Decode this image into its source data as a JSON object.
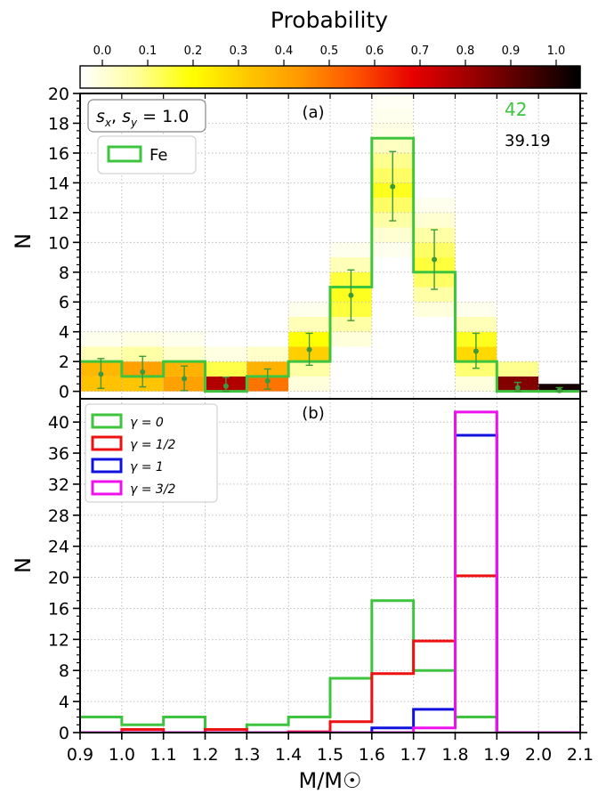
{
  "colorbar": {
    "title": "Probability",
    "ticks": [
      "0.0",
      "0.1",
      "0.2",
      "0.3",
      "0.4",
      "0.5",
      "0.6",
      "0.7",
      "0.8",
      "0.9",
      "1.0"
    ],
    "tick_values": [
      0,
      0.1,
      0.2,
      0.3,
      0.4,
      0.5,
      0.6,
      0.7,
      0.8,
      0.9,
      1.0
    ],
    "stops": [
      "#ffffff",
      "#ffff9c",
      "#ffff00",
      "#ffc800",
      "#ff9600",
      "#ff5000",
      "#e60000",
      "#a00000",
      "#500000",
      "#000000"
    ]
  },
  "chart_data": [
    {
      "panel_label": "(a)",
      "type": "histogram-heatmap",
      "xlim": [
        0.9,
        2.1
      ],
      "ylim": [
        -0.5,
        20
      ],
      "ylabel": "N",
      "y_ticks": [
        "0",
        "2",
        "4",
        "6",
        "8",
        "10",
        "12",
        "14",
        "16",
        "18",
        "20"
      ],
      "y_tick_values": [
        0,
        2,
        4,
        6,
        8,
        10,
        12,
        14,
        16,
        18,
        20
      ],
      "grid": true,
      "annotation_box": "s_x, s_y = 1.0",
      "legend": {
        "placement": "upper-left",
        "entries": [
          {
            "label": "Fe",
            "color": "#3ec43e"
          }
        ]
      },
      "count_green": "42",
      "count_black": "39.19",
      "bin_edges": [
        0.9,
        1.0,
        1.1,
        1.2,
        1.3,
        1.4,
        1.5,
        1.6,
        1.7,
        1.8,
        1.9,
        2.0,
        2.1
      ],
      "series": [
        {
          "name": "Fe",
          "kind": "step",
          "color": "#3ec43e",
          "values": [
            2,
            1,
            2,
            0,
            1,
            2,
            7,
            17,
            8,
            2,
            0,
            0
          ]
        },
        {
          "kind": "errorbar",
          "color": "#3c9a3c",
          "x": [
            0.95,
            1.05,
            1.15,
            1.25,
            1.35,
            1.45,
            1.55,
            1.65,
            1.75,
            1.85,
            1.95,
            2.05
          ],
          "y": [
            1.15,
            1.3,
            0.85,
            0.35,
            0.7,
            2.8,
            6.45,
            13.75,
            8.85,
            2.7,
            0.25,
            0.05
          ],
          "yerr_low": [
            0.95,
            1.0,
            0.8,
            0.35,
            0.55,
            1.05,
            1.7,
            2.3,
            2.0,
            1.15,
            0.25,
            0.05
          ],
          "yerr_high": [
            1.05,
            1.05,
            0.85,
            0.6,
            0.8,
            1.1,
            1.7,
            2.35,
            2.0,
            1.2,
            0.35,
            0.2
          ]
        }
      ],
      "heatmap": [
        {
          "x": 0.95,
          "cells": [
            {
              "y": [
                0,
                1
              ],
              "p": 0.35
            },
            {
              "y": [
                1,
                2
              ],
              "p": 0.37
            },
            {
              "y": [
                2,
                3
              ],
              "p": 0.08
            },
            {
              "y": [
                3,
                4
              ],
              "p": 0.02
            }
          ]
        },
        {
          "x": 1.05,
          "cells": [
            {
              "y": [
                0,
                1
              ],
              "p": 0.34
            },
            {
              "y": [
                1,
                2
              ],
              "p": 0.42
            },
            {
              "y": [
                2,
                3
              ],
              "p": 0.1
            },
            {
              "y": [
                3,
                4
              ],
              "p": 0.03
            }
          ]
        },
        {
          "x": 1.15,
          "cells": [
            {
              "y": [
                0,
                1
              ],
              "p": 0.42
            },
            {
              "y": [
                1,
                2
              ],
              "p": 0.38
            },
            {
              "y": [
                2,
                3
              ],
              "p": 0.06
            },
            {
              "y": [
                3,
                4
              ],
              "p": 0.02
            }
          ]
        },
        {
          "x": 1.25,
          "cells": [
            {
              "y": [
                0,
                1
              ],
              "p": 0.75
            },
            {
              "y": [
                1,
                2
              ],
              "p": 0.17
            },
            {
              "y": [
                2,
                3
              ],
              "p": 0.03
            }
          ]
        },
        {
          "x": 1.35,
          "cells": [
            {
              "y": [
                0,
                1
              ],
              "p": 0.5
            },
            {
              "y": [
                1,
                2
              ],
              "p": 0.38
            },
            {
              "y": [
                2,
                3
              ],
              "p": 0.06
            }
          ]
        },
        {
          "x": 1.45,
          "cells": [
            {
              "y": [
                0,
                1
              ],
              "p": 0.04
            },
            {
              "y": [
                1,
                2
              ],
              "p": 0.1
            },
            {
              "y": [
                2,
                3
              ],
              "p": 0.32
            },
            {
              "y": [
                3,
                4
              ],
              "p": 0.22
            },
            {
              "y": [
                4,
                5
              ],
              "p": 0.08
            },
            {
              "y": [
                5,
                6
              ],
              "p": 0.02
            }
          ]
        },
        {
          "x": 1.55,
          "cells": [
            {
              "y": [
                3,
                4
              ],
              "p": 0.04
            },
            {
              "y": [
                4,
                5
              ],
              "p": 0.1
            },
            {
              "y": [
                5,
                6
              ],
              "p": 0.18
            },
            {
              "y": [
                6,
                7
              ],
              "p": 0.2
            },
            {
              "y": [
                7,
                8
              ],
              "p": 0.18
            },
            {
              "y": [
                8,
                9
              ],
              "p": 0.08
            },
            {
              "y": [
                9,
                10
              ],
              "p": 0.02
            }
          ]
        },
        {
          "x": 1.65,
          "cells": [
            {
              "y": [
                9,
                10
              ],
              "p": 0.02
            },
            {
              "y": [
                10,
                11
              ],
              "p": 0.05
            },
            {
              "y": [
                11,
                12
              ],
              "p": 0.1
            },
            {
              "y": [
                12,
                13
              ],
              "p": 0.15
            },
            {
              "y": [
                13,
                14
              ],
              "p": 0.2
            },
            {
              "y": [
                14,
                15
              ],
              "p": 0.15
            },
            {
              "y": [
                15,
                16
              ],
              "p": 0.12
            },
            {
              "y": [
                16,
                17
              ],
              "p": 0.07
            },
            {
              "y": [
                17,
                18
              ],
              "p": 0.03
            },
            {
              "y": [
                18,
                19
              ],
              "p": 0.02
            },
            {
              "y": [
                19,
                20
              ],
              "p": 0.01
            }
          ]
        },
        {
          "x": 1.75,
          "cells": [
            {
              "y": [
                5,
                6
              ],
              "p": 0.04
            },
            {
              "y": [
                6,
                7
              ],
              "p": 0.1
            },
            {
              "y": [
                7,
                8
              ],
              "p": 0.15
            },
            {
              "y": [
                8,
                9
              ],
              "p": 0.18
            },
            {
              "y": [
                9,
                10
              ],
              "p": 0.15
            },
            {
              "y": [
                10,
                11
              ],
              "p": 0.1
            },
            {
              "y": [
                11,
                12
              ],
              "p": 0.05
            },
            {
              "y": [
                12,
                13
              ],
              "p": 0.02
            }
          ]
        },
        {
          "x": 1.85,
          "cells": [
            {
              "y": [
                0,
                1
              ],
              "p": 0.04
            },
            {
              "y": [
                1,
                2
              ],
              "p": 0.14
            },
            {
              "y": [
                2,
                3
              ],
              "p": 0.3
            },
            {
              "y": [
                3,
                4
              ],
              "p": 0.2
            },
            {
              "y": [
                4,
                5
              ],
              "p": 0.08
            },
            {
              "y": [
                5,
                6
              ],
              "p": 0.02
            }
          ]
        },
        {
          "x": 1.95,
          "cells": [
            {
              "y": [
                0,
                1
              ],
              "p": 0.82
            },
            {
              "y": [
                1,
                2
              ],
              "p": 0.12
            }
          ]
        },
        {
          "x": 2.05,
          "cells": [
            {
              "y": [
                0,
                0.5
              ],
              "p": 0.97
            }
          ]
        }
      ]
    },
    {
      "panel_label": "(b)",
      "type": "histogram",
      "xlim": [
        0.9,
        2.1
      ],
      "ylim": [
        0,
        43
      ],
      "xlabel": "M/M☉",
      "ylabel": "N",
      "x_ticks": [
        "0.9",
        "1.0",
        "1.1",
        "1.2",
        "1.3",
        "1.4",
        "1.5",
        "1.6",
        "1.7",
        "1.8",
        "1.9",
        "2.0",
        "2.1"
      ],
      "x_tick_values": [
        0.9,
        1.0,
        1.1,
        1.2,
        1.3,
        1.4,
        1.5,
        1.6,
        1.7,
        1.8,
        1.9,
        2.0,
        2.1
      ],
      "y_ticks": [
        "0",
        "4",
        "8",
        "12",
        "16",
        "20",
        "24",
        "28",
        "32",
        "36",
        "40"
      ],
      "y_tick_values": [
        0,
        4,
        8,
        12,
        16,
        20,
        24,
        28,
        32,
        36,
        40
      ],
      "grid": true,
      "legend": {
        "placement": "upper-left"
      },
      "bin_edges": [
        0.9,
        1.0,
        1.1,
        1.2,
        1.3,
        1.4,
        1.5,
        1.6,
        1.7,
        1.8,
        1.9,
        2.0,
        2.1
      ],
      "series": [
        {
          "name": "γ = 0",
          "color": "#3ec43e",
          "values": [
            2,
            1,
            2,
            0,
            1,
            2,
            7,
            17,
            8,
            2,
            0,
            0
          ]
        },
        {
          "name": "γ = 1/2",
          "color": "#ee1111",
          "values": [
            0,
            0.4,
            0,
            0.4,
            0,
            0.1,
            1.4,
            7.6,
            11.8,
            20.2,
            0,
            0
          ]
        },
        {
          "name": "γ = 1",
          "color": "#1111dd",
          "values": [
            0,
            0,
            0,
            0,
            0,
            0,
            0,
            0.6,
            3.0,
            38.3,
            0,
            0
          ]
        },
        {
          "name": "γ = 3/2",
          "color": "#ee11ee",
          "values": [
            0,
            0,
            0,
            0,
            0,
            0,
            0,
            0,
            0.6,
            41.3,
            0,
            0
          ]
        }
      ]
    }
  ]
}
